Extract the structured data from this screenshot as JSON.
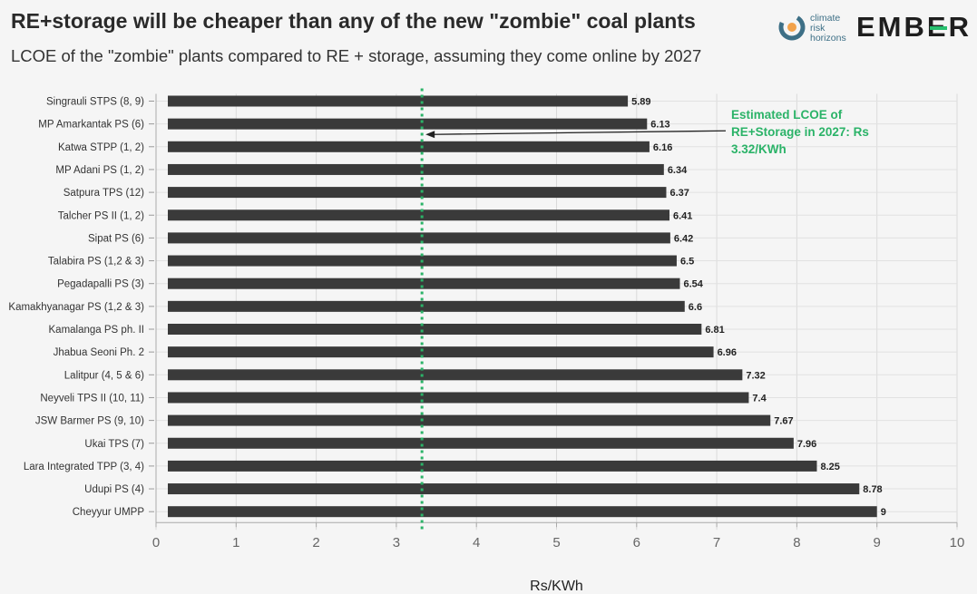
{
  "header": {
    "title": "RE+storage will be cheaper than any of the new \"zombie\" coal plants",
    "subtitle": "LCOE of the \"zombie\" plants compared to RE + storage, assuming they come online by 2027"
  },
  "logos": {
    "climate_risk_horizons": [
      "climate",
      "risk",
      "horizons"
    ],
    "ember": [
      "EMB",
      "E",
      "R"
    ],
    "ember_accent_color": "#27c06f"
  },
  "chart_data": {
    "type": "bar",
    "orientation": "horizontal",
    "categories": [
      "Singrauli STPS (8, 9)",
      "MP Amarkantak PS (6)",
      "Katwa STPP (1, 2)",
      "MP Adani PS (1, 2)",
      "Satpura TPS (12)",
      "Talcher PS II (1, 2)",
      "Sipat PS (6)",
      "Talabira PS (1,2 & 3)",
      "Pegadapalli PS (3)",
      "Kamakhyanagar PS (1,2 & 3)",
      "Kamalanga PS ph. II",
      "Jhabua Seoni Ph. 2",
      "Lalitpur (4, 5 & 6)",
      "Neyveli TPS II (10, 11)",
      "JSW Barmer PS (9, 10)",
      "Ukai TPS (7)",
      "Lara Integrated TPP (3, 4)",
      "Udupi PS (4)",
      "Cheyyur UMPP"
    ],
    "values": [
      5.89,
      6.13,
      6.16,
      6.34,
      6.37,
      6.41,
      6.42,
      6.5,
      6.54,
      6.6,
      6.81,
      6.96,
      7.32,
      7.4,
      7.67,
      7.96,
      8.25,
      8.78,
      9
    ],
    "value_labels": [
      "5.89",
      "6.13",
      "6.16",
      "6.34",
      "6.37",
      "6.41",
      "6.42",
      "6.5",
      "6.54",
      "6.6",
      "6.81",
      "6.96",
      "7.32",
      "7.4",
      "7.67",
      "7.96",
      "8.25",
      "8.78",
      "9"
    ],
    "xlabel": "Rs/KWh",
    "xlim": [
      0,
      10
    ],
    "xticks": [
      "0",
      "1",
      "2",
      "3",
      "4",
      "5",
      "6",
      "7",
      "8",
      "9",
      "10"
    ],
    "grid": true,
    "bar_color": "#3a3a3a",
    "reference_line": {
      "value": 3.32,
      "color": "#2bb368",
      "style": "dotted",
      "annotation": [
        "Estimated LCOE of",
        "RE+Storage in 2027: Rs",
        "3.32/KWh"
      ]
    }
  }
}
